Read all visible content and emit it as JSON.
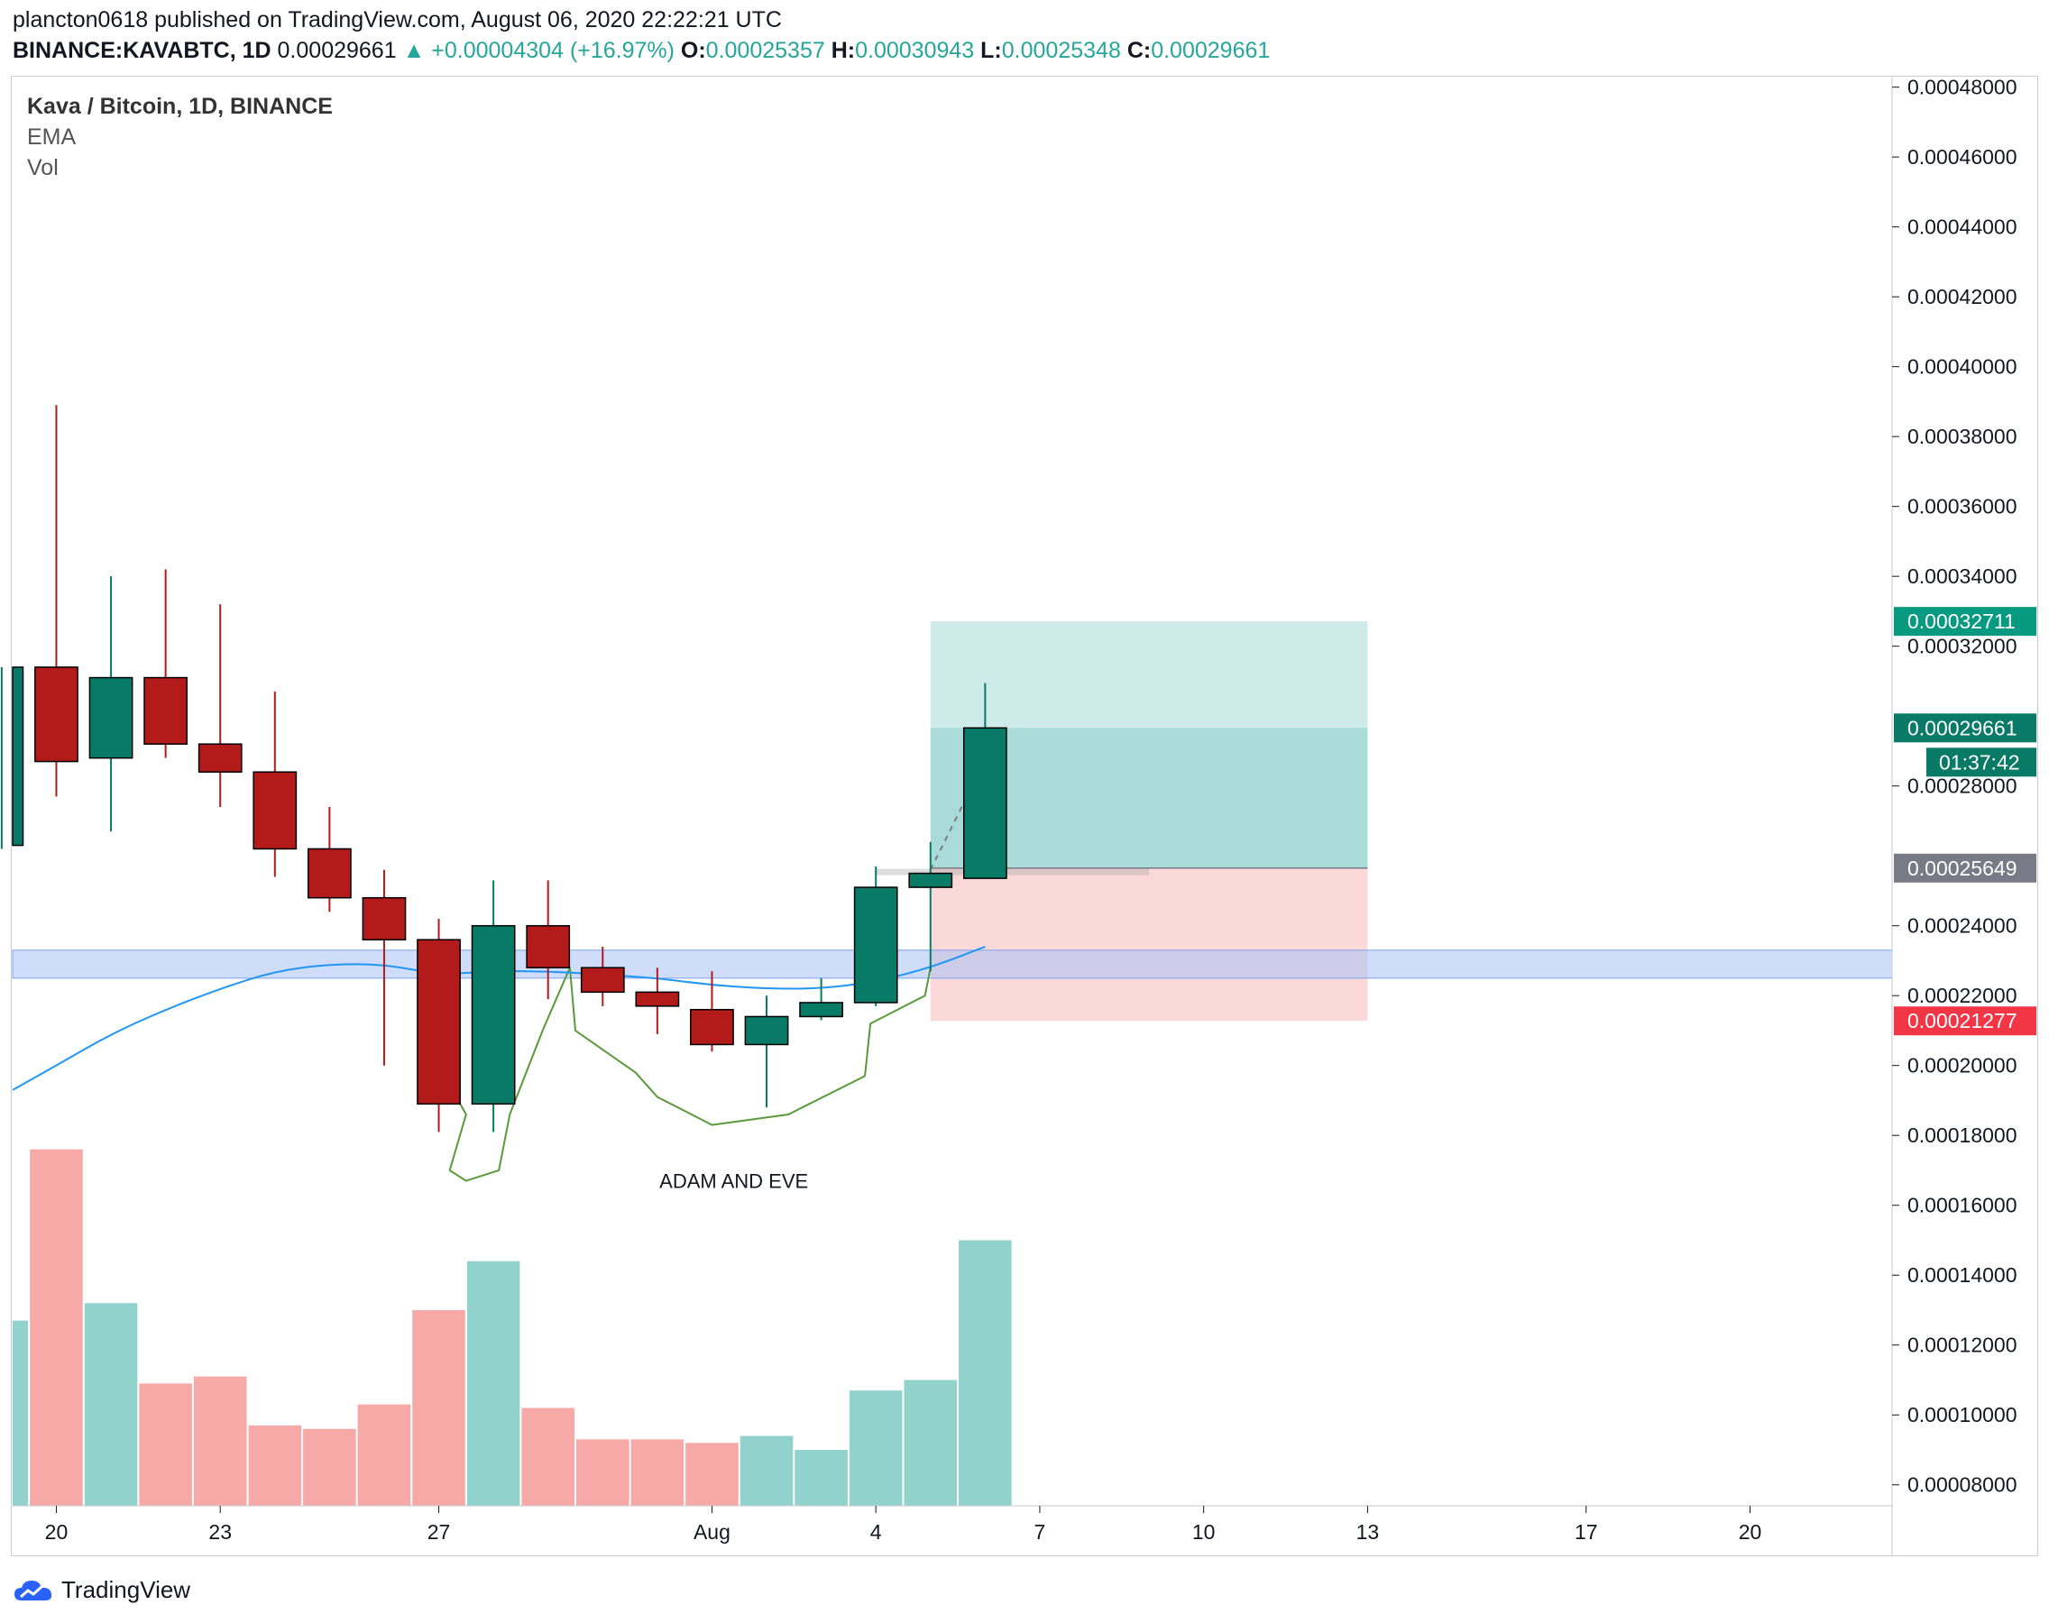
{
  "header": {
    "line1": "plancton0618 published on TradingView.com, August 06, 2020 22:22:21 UTC",
    "symbol": "BINANCE:KAVABTC, 1D",
    "last": "0.00029661",
    "change": "▲ +0.00004304 (+16.97%)",
    "o_label": "O:",
    "o": "0.00025357",
    "h_label": "H:",
    "h": "0.00030943",
    "l_label": "L:",
    "l": "0.00025348",
    "c_label": "C:",
    "c": "0.00029661"
  },
  "legend": {
    "title": "Kava / Bitcoin, 1D, BINANCE",
    "ema": "EMA",
    "vol": "Vol"
  },
  "footer": {
    "brand": "TradingView"
  },
  "colors": {
    "up": "#26a69a",
    "down": "#ef5350",
    "candle_up": "#087a66",
    "candle_down": "#b31b1b",
    "ema": "#2196f3",
    "zone": "#a7c1f5",
    "target": "#26a69a",
    "stop": "#ef5350",
    "entry_tag": "#787b86",
    "pattern": "#5a9a3a"
  },
  "chart_data": {
    "type": "candlestick",
    "title": "Kava / Bitcoin, 1D, BINANCE",
    "x_ticks": [
      {
        "day": 0,
        "label": "20"
      },
      {
        "day": 3,
        "label": "23"
      },
      {
        "day": 7,
        "label": "27"
      },
      {
        "day": 12,
        "label": "Aug"
      },
      {
        "day": 15,
        "label": "4"
      },
      {
        "day": 18,
        "label": "7"
      },
      {
        "day": 21,
        "label": "10"
      },
      {
        "day": 24,
        "label": "13"
      },
      {
        "day": 28,
        "label": "17"
      },
      {
        "day": 31,
        "label": "20"
      }
    ],
    "y_ticks": [
      "0.00008000",
      "0.00010000",
      "0.00012000",
      "0.00014000",
      "0.00016000",
      "0.00018000",
      "0.00020000",
      "0.00022000",
      "0.00024000",
      "0.00028000",
      "0.00032000",
      "0.00034000",
      "0.00036000",
      "0.00038000",
      "0.00040000",
      "0.00042000",
      "0.00044000",
      "0.00046000",
      "0.00048000"
    ],
    "candles": [
      {
        "day": -1,
        "o": 0.000263,
        "h": 0.000314,
        "l": 0.000262,
        "c": 0.000314
      },
      {
        "day": 0,
        "o": 0.000314,
        "h": 0.000389,
        "l": 0.000277,
        "c": 0.000287
      },
      {
        "day": 1,
        "o": 0.000288,
        "h": 0.00034,
        "l": 0.000267,
        "c": 0.000311
      },
      {
        "day": 2,
        "o": 0.000311,
        "h": 0.000342,
        "l": 0.000288,
        "c": 0.000292
      },
      {
        "day": 3,
        "o": 0.000292,
        "h": 0.000332,
        "l": 0.000274,
        "c": 0.000284
      },
      {
        "day": 4,
        "o": 0.000284,
        "h": 0.000307,
        "l": 0.000254,
        "c": 0.000262
      },
      {
        "day": 5,
        "o": 0.000262,
        "h": 0.000274,
        "l": 0.000244,
        "c": 0.000248
      },
      {
        "day": 6,
        "o": 0.000248,
        "h": 0.000256,
        "l": 0.0002,
        "c": 0.000236
      },
      {
        "day": 7,
        "o": 0.000236,
        "h": 0.000242,
        "l": 0.000181,
        "c": 0.000189
      },
      {
        "day": 8,
        "o": 0.000189,
        "h": 0.000253,
        "l": 0.000181,
        "c": 0.00024
      },
      {
        "day": 9,
        "o": 0.00024,
        "h": 0.000253,
        "l": 0.000219,
        "c": 0.000228
      },
      {
        "day": 10,
        "o": 0.000228,
        "h": 0.000234,
        "l": 0.000217,
        "c": 0.000221
      },
      {
        "day": 11,
        "o": 0.000221,
        "h": 0.000228,
        "l": 0.000209,
        "c": 0.000217
      },
      {
        "day": 12,
        "o": 0.000216,
        "h": 0.000227,
        "l": 0.000204,
        "c": 0.000206
      },
      {
        "day": 13,
        "o": 0.000206,
        "h": 0.00022,
        "l": 0.000188,
        "c": 0.000214
      },
      {
        "day": 14,
        "o": 0.000214,
        "h": 0.000225,
        "l": 0.000213,
        "c": 0.000218
      },
      {
        "day": 15,
        "o": 0.000218,
        "h": 0.000257,
        "l": 0.000217,
        "c": 0.000251
      },
      {
        "day": 16,
        "o": 0.000251,
        "h": 0.000264,
        "l": 0.000227,
        "c": 0.000255
      },
      {
        "day": 17,
        "o": 0.00025357,
        "h": 0.00030943,
        "l": 0.00025348,
        "c": 0.00029661
      }
    ],
    "ema": [
      {
        "day": -1,
        "v": 0.000193
      },
      {
        "day": 0,
        "v": 0.0002
      },
      {
        "day": 1,
        "v": 0.000209
      },
      {
        "day": 2,
        "v": 0.000216
      },
      {
        "day": 3,
        "v": 0.000222
      },
      {
        "day": 4,
        "v": 0.000227
      },
      {
        "day": 5,
        "v": 0.000229
      },
      {
        "day": 6,
        "v": 0.000229
      },
      {
        "day": 7,
        "v": 0.000226
      },
      {
        "day": 8,
        "v": 0.000227
      },
      {
        "day": 9,
        "v": 0.000227
      },
      {
        "day": 10,
        "v": 0.000226
      },
      {
        "day": 11,
        "v": 0.000225
      },
      {
        "day": 12,
        "v": 0.000223
      },
      {
        "day": 13,
        "v": 0.000222
      },
      {
        "day": 14,
        "v": 0.000222
      },
      {
        "day": 15,
        "v": 0.000224
      },
      {
        "day": 16,
        "v": 0.000228
      },
      {
        "day": 17,
        "v": 0.000234
      }
    ],
    "volume": [
      {
        "day": -1,
        "v": 0.000127,
        "dir": "up"
      },
      {
        "day": 0,
        "v": 0.000176,
        "dir": "down"
      },
      {
        "day": 1,
        "v": 0.000132,
        "dir": "up"
      },
      {
        "day": 2,
        "v": 0.000109,
        "dir": "down"
      },
      {
        "day": 3,
        "v": 0.000111,
        "dir": "down"
      },
      {
        "day": 4,
        "v": 9.7e-05,
        "dir": "down"
      },
      {
        "day": 5,
        "v": 9.6e-05,
        "dir": "down"
      },
      {
        "day": 6,
        "v": 0.000103,
        "dir": "down"
      },
      {
        "day": 7,
        "v": 0.00013,
        "dir": "down"
      },
      {
        "day": 8,
        "v": 0.000144,
        "dir": "up"
      },
      {
        "day": 9,
        "v": 0.000102,
        "dir": "down"
      },
      {
        "day": 10,
        "v": 9.3e-05,
        "dir": "down"
      },
      {
        "day": 11,
        "v": 9.3e-05,
        "dir": "down"
      },
      {
        "day": 12,
        "v": 9.2e-05,
        "dir": "down"
      },
      {
        "day": 13,
        "v": 9.4e-05,
        "dir": "up"
      },
      {
        "day": 14,
        "v": 9e-05,
        "dir": "up"
      },
      {
        "day": 15,
        "v": 0.000107,
        "dir": "up"
      },
      {
        "day": 16,
        "v": 0.00011,
        "dir": "up"
      },
      {
        "day": 17,
        "v": 0.00015,
        "dir": "up"
      }
    ],
    "support_zone": {
      "low": 0.000225,
      "high": 0.000233
    },
    "position": {
      "start_day": 16,
      "end_day": 24,
      "entry": 0.00025649,
      "target": 0.00032711,
      "stop": 0.00021277
    },
    "price_tags": {
      "target": "0.00032711",
      "last": "0.00029661",
      "countdown": "01:37:42",
      "entry": "0.00025649",
      "stop": "0.00021277"
    },
    "annotation": "ADAM AND EVE",
    "y_range": [
      7.4e-05,
      0.000483
    ],
    "x_range": [
      -0.8,
      33.6
    ]
  }
}
